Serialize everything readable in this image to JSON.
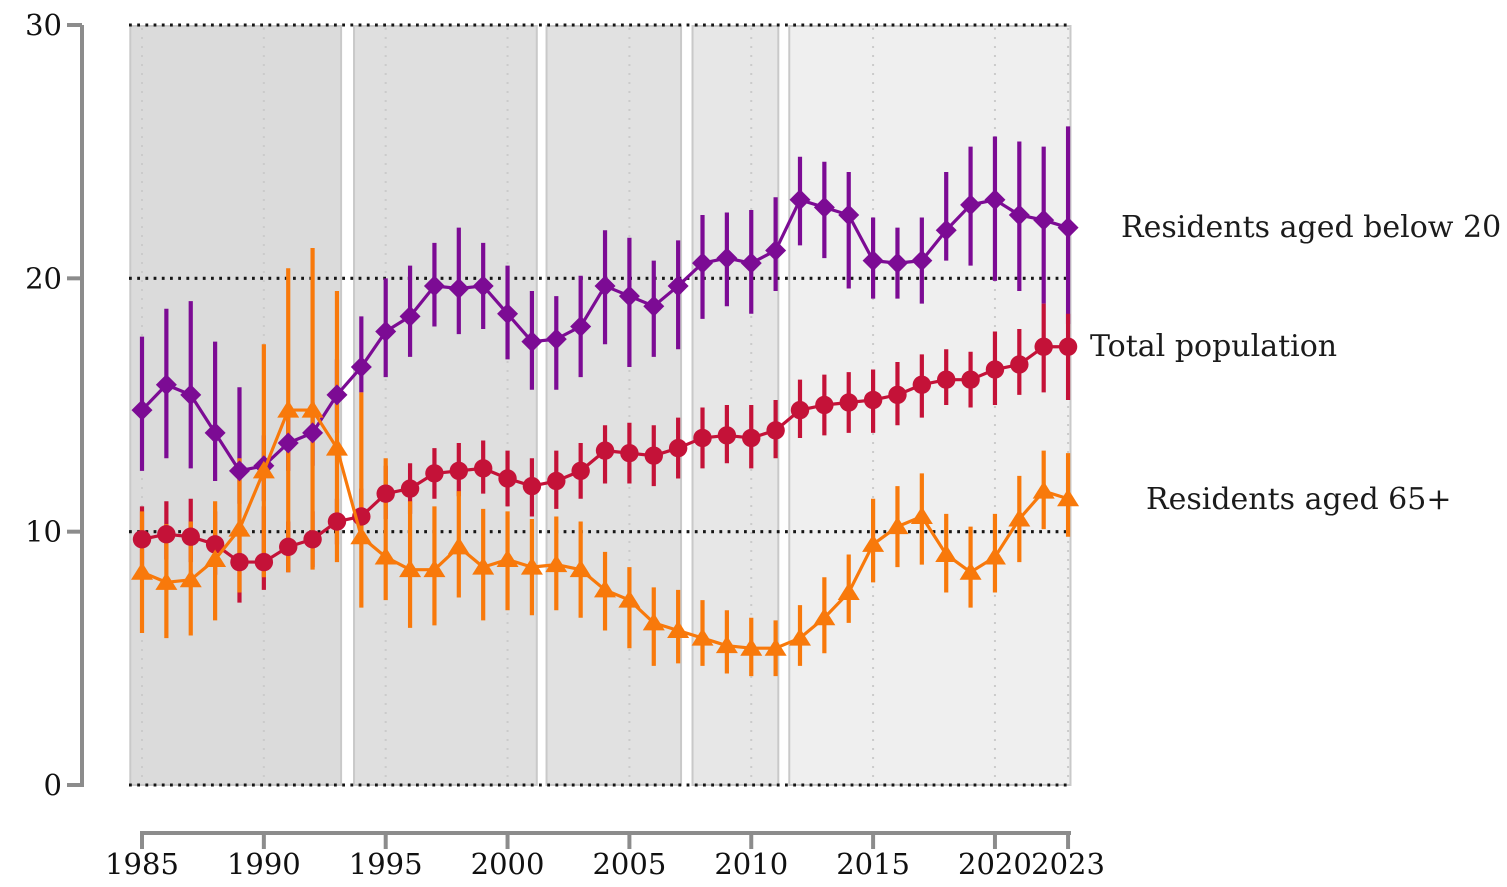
{
  "chart_data": {
    "type": "line",
    "title": "",
    "xlabel": "",
    "ylabel": "",
    "ylim": [
      0,
      30
    ],
    "xlim": [
      1984.5,
      2023.2
    ],
    "yticks": [
      0,
      10,
      20,
      30
    ],
    "ytick_labels": [
      "0",
      "10",
      "20",
      "30"
    ],
    "xticks": [
      1985,
      1990,
      1995,
      2000,
      2005,
      2010,
      2015,
      2020,
      2023
    ],
    "xtick_labels": [
      "1985",
      "1990",
      "1995",
      "2000",
      "2005",
      "2010",
      "2015",
      "2020",
      "2023"
    ],
    "grid": {
      "horizontal": "black dotted lines at y = 0, 10, 20, 30",
      "vertical": "light gray dotted lines at each labeled year",
      "hgrid_color": "#161616",
      "vgrid_color": "#cbcbcb"
    },
    "axis_color": "#8c8c8c",
    "band_border_color": "#c9c9c9",
    "background_bands": [
      {
        "from_year": 1984.52,
        "to_year": 1993.17,
        "fill": "#dbdbdb"
      },
      {
        "from_year": 1993.7,
        "to_year": 2001.2,
        "fill": "#dfdfdf"
      },
      {
        "from_year": 2001.6,
        "to_year": 2007.12,
        "fill": "#e1e1e1"
      },
      {
        "from_year": 2007.59,
        "to_year": 2011.11,
        "fill": "#e7e7e7"
      },
      {
        "from_year": 2011.56,
        "to_year": 2023.1,
        "fill": "#efefef"
      }
    ],
    "x": [
      1985,
      1986,
      1987,
      1988,
      1989,
      1990,
      1991,
      1992,
      1993,
      1994,
      1995,
      1996,
      1997,
      1998,
      1999,
      2000,
      2001,
      2002,
      2003,
      2004,
      2005,
      2006,
      2007,
      2008,
      2009,
      2010,
      2011,
      2012,
      2013,
      2014,
      2015,
      2016,
      2017,
      2018,
      2019,
      2020,
      2021,
      2022,
      2023
    ],
    "series": [
      {
        "name": "Residents aged below 20",
        "color": "#7C0B94",
        "marker": "diamond",
        "values": [
          14.8,
          15.8,
          15.4,
          13.9,
          12.4,
          12.6,
          13.5,
          13.9,
          15.4,
          16.5,
          17.9,
          18.5,
          19.7,
          19.6,
          19.7,
          18.6,
          17.5,
          17.6,
          18.1,
          19.7,
          19.3,
          18.9,
          19.7,
          20.6,
          20.8,
          20.6,
          21.1,
          23.1,
          22.8,
          22.5,
          20.7,
          20.6,
          20.7,
          21.9,
          22.9,
          23.1,
          22.5,
          22.3,
          22.0
        ],
        "ci_low": [
          12.4,
          12.9,
          12.5,
          12.0,
          11.1,
          11.2,
          12.4,
          12.6,
          13.9,
          15.5,
          16.1,
          16.9,
          18.1,
          17.8,
          18.0,
          16.8,
          15.6,
          15.6,
          16.1,
          17.4,
          16.5,
          16.9,
          17.2,
          18.4,
          18.9,
          18.6,
          19.5,
          21.3,
          20.8,
          19.6,
          19.2,
          19.2,
          19.0,
          20.7,
          20.5,
          19.9,
          19.5,
          19.0,
          18.2
        ],
        "ci_high": [
          17.7,
          18.8,
          19.1,
          17.5,
          15.7,
          13.8,
          14.7,
          15.1,
          16.8,
          18.5,
          20.0,
          20.5,
          21.4,
          22.0,
          21.4,
          20.5,
          19.5,
          19.3,
          20.1,
          21.9,
          21.6,
          20.7,
          21.5,
          22.5,
          22.6,
          22.7,
          23.2,
          24.8,
          24.6,
          24.2,
          22.4,
          22.0,
          22.4,
          24.2,
          25.2,
          25.6,
          25.4,
          25.2,
          26.0
        ]
      },
      {
        "name": "Total population",
        "color": "#C41238",
        "marker": "circle",
        "values": [
          9.7,
          9.9,
          9.8,
          9.5,
          8.8,
          8.8,
          9.4,
          9.7,
          10.4,
          10.6,
          11.5,
          11.7,
          12.3,
          12.4,
          12.5,
          12.1,
          11.8,
          12.0,
          12.4,
          13.2,
          13.1,
          13.0,
          13.3,
          13.7,
          13.8,
          13.7,
          14.0,
          14.8,
          15.0,
          15.1,
          15.2,
          15.4,
          15.8,
          16.0,
          16.0,
          16.4,
          16.6,
          17.3,
          17.3
        ],
        "ci_low": [
          8.4,
          8.9,
          8.8,
          8.3,
          7.2,
          7.7,
          8.4,
          8.6,
          9.5,
          9.6,
          10.5,
          10.7,
          11.3,
          11.4,
          11.5,
          11.0,
          10.6,
          10.9,
          11.3,
          11.9,
          11.9,
          11.8,
          12.1,
          12.5,
          12.7,
          12.5,
          12.9,
          13.7,
          13.8,
          13.9,
          13.9,
          14.2,
          14.5,
          15.0,
          14.9,
          15.0,
          15.4,
          15.5,
          15.2
        ],
        "ci_high": [
          11.0,
          11.2,
          11.3,
          10.8,
          10.0,
          11.0,
          10.4,
          10.8,
          11.3,
          11.7,
          12.6,
          12.7,
          13.3,
          13.5,
          13.6,
          13.2,
          12.9,
          13.2,
          13.5,
          14.2,
          14.3,
          14.2,
          14.5,
          14.9,
          15.0,
          15.0,
          15.2,
          16.0,
          16.2,
          16.3,
          16.4,
          16.7,
          17.0,
          17.2,
          17.1,
          17.9,
          18.0,
          19.0,
          18.6
        ]
      },
      {
        "name": "Residents aged 65+",
        "color": "#F8790B",
        "marker": "triangle",
        "values": [
          8.4,
          8.0,
          8.1,
          8.9,
          10.1,
          12.4,
          14.8,
          14.8,
          13.3,
          9.8,
          9.0,
          8.5,
          8.5,
          9.4,
          8.6,
          8.9,
          8.6,
          8.7,
          8.5,
          7.7,
          7.3,
          6.4,
          6.1,
          5.8,
          5.5,
          5.4,
          5.4,
          5.8,
          6.6,
          7.6,
          9.5,
          10.2,
          10.6,
          9.1,
          8.4,
          9.0,
          10.5,
          11.6,
          11.3
        ],
        "ci_low": [
          6.0,
          5.8,
          5.9,
          6.5,
          7.6,
          8.2,
          8.4,
          8.5,
          8.8,
          7.0,
          7.3,
          6.2,
          6.3,
          7.4,
          6.5,
          6.9,
          6.7,
          6.9,
          6.6,
          6.1,
          5.4,
          4.7,
          4.8,
          4.7,
          4.4,
          4.3,
          4.3,
          4.7,
          5.2,
          6.4,
          8.0,
          8.6,
          8.7,
          7.6,
          7.0,
          7.6,
          8.8,
          10.1,
          9.8
        ],
        "ci_high": [
          10.8,
          10.3,
          10.4,
          11.2,
          12.9,
          17.4,
          20.4,
          21.2,
          19.5,
          15.5,
          12.9,
          11.2,
          11.0,
          11.6,
          10.9,
          10.8,
          10.5,
          10.6,
          10.4,
          9.2,
          8.6,
          7.8,
          7.7,
          7.3,
          6.9,
          6.6,
          6.5,
          7.1,
          8.2,
          9.1,
          11.3,
          11.8,
          12.3,
          10.7,
          10.2,
          10.7,
          12.2,
          13.2,
          13.1
        ]
      }
    ],
    "legend_position": "series labels placed to the right of the plot, outside the axes"
  }
}
